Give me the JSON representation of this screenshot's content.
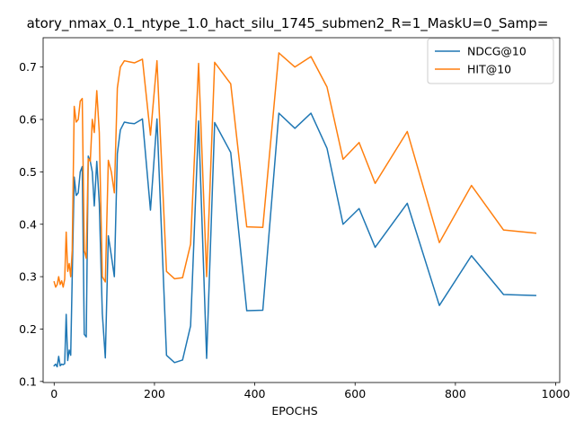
{
  "chart_data": {
    "type": "line",
    "title": "atory_nmax_0.1_ntype_1.0_hact_silu_1745_submen2_R=1_MaskU=0_Samp=",
    "xlabel": "EPOCHS",
    "ylabel": "",
    "xlim": [
      -22,
      1008
    ],
    "ylim": [
      0.098,
      0.756
    ],
    "xticks": [
      0,
      200,
      400,
      600,
      800,
      1000
    ],
    "yticks": [
      0.1,
      0.2,
      0.3,
      0.4,
      0.5,
      0.6,
      0.7
    ],
    "grid": false,
    "legend_position": "top-right",
    "series": [
      {
        "name": "NDCG@10",
        "color": "#1f77b4",
        "x": [
          0,
          3,
          6,
          9,
          12,
          15,
          18,
          21,
          24,
          27,
          30,
          33,
          36,
          40,
          44,
          48,
          52,
          56,
          60,
          64,
          68,
          72,
          76,
          80,
          85,
          90,
          96,
          102,
          108,
          114,
          120,
          126,
          132,
          140,
          150,
          160,
          176,
          192,
          205,
          224,
          240,
          256,
          272,
          288,
          304,
          320,
          352,
          384,
          416,
          448,
          480,
          512,
          544,
          576,
          608,
          640,
          704,
          768,
          832,
          896,
          960
        ],
        "y": [
          0.13,
          0.133,
          0.128,
          0.148,
          0.13,
          0.133,
          0.132,
          0.134,
          0.228,
          0.14,
          0.16,
          0.15,
          0.3,
          0.49,
          0.455,
          0.46,
          0.5,
          0.51,
          0.19,
          0.185,
          0.53,
          0.52,
          0.5,
          0.435,
          0.52,
          0.44,
          0.23,
          0.145,
          0.378,
          0.34,
          0.3,
          0.535,
          0.58,
          0.595,
          0.593,
          0.592,
          0.601,
          0.427,
          0.601,
          0.15,
          0.136,
          0.141,
          0.206,
          0.597,
          0.144,
          0.594,
          0.537,
          0.235,
          0.236,
          0.612,
          0.583,
          0.612,
          0.545,
          0.4,
          0.43,
          0.356,
          0.44,
          0.245,
          0.34,
          0.266,
          0.264
        ]
      },
      {
        "name": "HIT@10",
        "color": "#ff7f0e",
        "x": [
          0,
          3,
          6,
          9,
          12,
          15,
          18,
          21,
          24,
          27,
          30,
          33,
          36,
          40,
          44,
          48,
          52,
          56,
          60,
          64,
          68,
          72,
          76,
          80,
          85,
          90,
          96,
          102,
          108,
          114,
          120,
          126,
          132,
          140,
          150,
          160,
          176,
          192,
          205,
          224,
          240,
          256,
          272,
          288,
          304,
          320,
          352,
          384,
          416,
          448,
          480,
          512,
          544,
          576,
          608,
          640,
          704,
          768,
          832,
          896,
          960
        ],
        "y": [
          0.29,
          0.28,
          0.285,
          0.3,
          0.285,
          0.292,
          0.28,
          0.295,
          0.385,
          0.31,
          0.325,
          0.3,
          0.35,
          0.625,
          0.595,
          0.6,
          0.635,
          0.64,
          0.35,
          0.335,
          0.525,
          0.52,
          0.6,
          0.575,
          0.655,
          0.575,
          0.3,
          0.29,
          0.522,
          0.5,
          0.46,
          0.66,
          0.7,
          0.712,
          0.71,
          0.708,
          0.715,
          0.57,
          0.712,
          0.31,
          0.296,
          0.298,
          0.362,
          0.707,
          0.3,
          0.709,
          0.668,
          0.395,
          0.394,
          0.727,
          0.7,
          0.72,
          0.662,
          0.524,
          0.556,
          0.478,
          0.577,
          0.365,
          0.474,
          0.389,
          0.383
        ]
      }
    ]
  }
}
